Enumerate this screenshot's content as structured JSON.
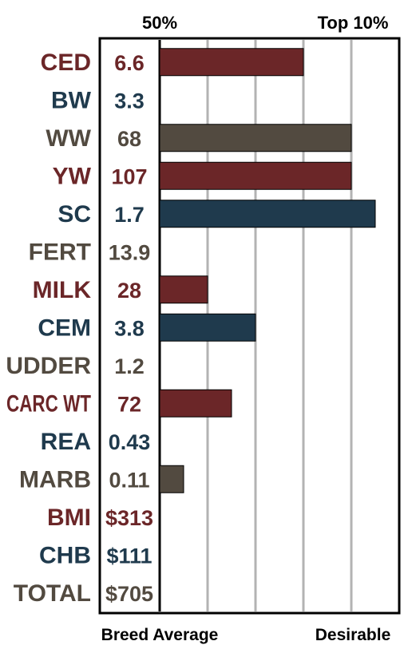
{
  "colors": {
    "red": "#6b2628",
    "blue": "#1f3a4d",
    "gray": "#524a40",
    "grid": "#b3b3b3",
    "frame": "#000000"
  },
  "chart_data": {
    "type": "bar",
    "orientation": "horizontal",
    "top_labels": {
      "average": "50%",
      "top": "Top 10%"
    },
    "bottom_labels": {
      "left": "Breed Average",
      "right": "Desirable"
    },
    "grid": true,
    "categories": [
      "CED",
      "BW",
      "WW",
      "YW",
      "SC",
      "FERT",
      "MILK",
      "CEM",
      "UDDER",
      "CARC WT",
      "REA",
      "MARB",
      "BMI",
      "CHB",
      "TOTAL"
    ],
    "display_values": [
      "6.6",
      "3.3",
      "68",
      "107",
      "1.7",
      "13.9",
      "28",
      "3.8",
      "1.2",
      "72",
      "0.43",
      "0.11",
      "$313",
      "$111",
      "$705"
    ],
    "colors": [
      "red",
      "blue",
      "gray",
      "red",
      "blue",
      "gray",
      "red",
      "blue",
      "gray",
      "red",
      "blue",
      "gray",
      "red",
      "blue",
      "gray"
    ],
    "bar_lengths": [
      3.0,
      0,
      4.0,
      4.0,
      4.5,
      0,
      1.0,
      2.0,
      0,
      1.5,
      0,
      0.5,
      0,
      0,
      0
    ],
    "xlim": [
      0,
      5
    ]
  }
}
